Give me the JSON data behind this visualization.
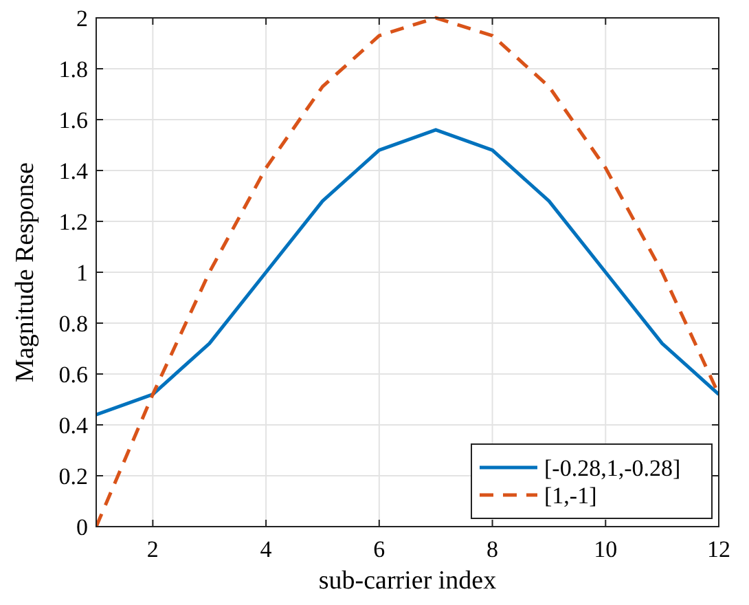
{
  "chart_data": {
    "type": "line",
    "xlabel": "sub-carrier index",
    "ylabel": "Magnitude Response",
    "x": [
      1,
      2,
      3,
      4,
      5,
      6,
      7,
      8,
      9,
      10,
      11,
      12
    ],
    "series": [
      {
        "name": "[-0.28,1,-0.28]",
        "color": "#0072bd",
        "line_style": "solid",
        "values": [
          0.44,
          0.52,
          0.72,
          1.0,
          1.28,
          1.48,
          1.56,
          1.48,
          1.28,
          1.0,
          0.72,
          0.52
        ]
      },
      {
        "name": "[1,-1]",
        "color": "#d95319",
        "line_style": "dashed",
        "values": [
          0,
          0.52,
          1.0,
          1.41,
          1.73,
          1.93,
          2.0,
          1.93,
          1.73,
          1.41,
          1.0,
          0.52
        ]
      }
    ],
    "xlim": [
      1,
      12
    ],
    "xticks": [
      2,
      4,
      6,
      8,
      10,
      12
    ],
    "ylim": [
      0,
      2
    ],
    "yticks": [
      0,
      0.2,
      0.4,
      0.6,
      0.8,
      1,
      1.2,
      1.4,
      1.6,
      1.8,
      2
    ],
    "grid": true,
    "legend": "bottom right",
    "marker": "none"
  }
}
